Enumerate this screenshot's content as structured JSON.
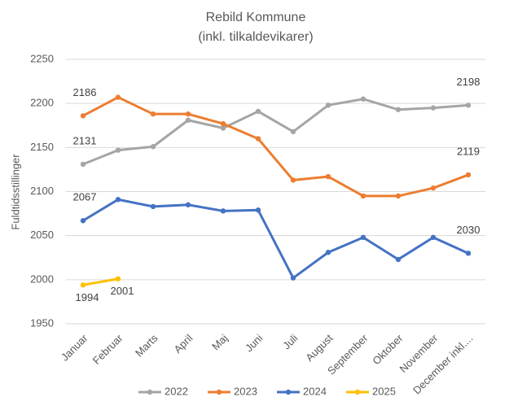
{
  "chart_data": {
    "type": "line",
    "title": "Rebild Kommune",
    "subtitle": "(inkl. tilkaldevikarer)",
    "y_label": "Fuldtidsstillinger",
    "categories": [
      "Januar",
      "Februar",
      "Marts",
      "April",
      "Maj",
      "Juni",
      "Juli",
      "August",
      "September",
      "Oktober",
      "November",
      "December inkl...."
    ],
    "series": [
      {
        "name": "2022",
        "color": "#a5a5a5",
        "values": [
          2131,
          2147,
          2151,
          2181,
          2172,
          2191,
          2168,
          2198,
          2205,
          2193,
          2195,
          2198
        ],
        "labeled_points": [
          0,
          11
        ]
      },
      {
        "name": "2023",
        "color": "#ed7d31",
        "values": [
          2186,
          2207,
          2188,
          2188,
          2177,
          2160,
          2113,
          2117,
          2095,
          2095,
          2104,
          2119
        ],
        "labeled_points": [
          0,
          11
        ]
      },
      {
        "name": "2024",
        "color": "#4472c4",
        "values": [
          2067,
          2091,
          2083,
          2085,
          2078,
          2079,
          2002,
          2031,
          2048,
          2023,
          2048,
          2030
        ],
        "labeled_points": [
          0,
          11
        ]
      },
      {
        "name": "2025",
        "color": "#ffc000",
        "values": [
          1994,
          2001,
          null,
          null,
          null,
          null,
          null,
          null,
          null,
          null,
          null,
          null
        ],
        "labeled_points": [
          0,
          1
        ]
      }
    ],
    "ylim": [
      1950,
      2250
    ],
    "yticks": [
      1950,
      2000,
      2050,
      2100,
      2150,
      2200,
      2250
    ],
    "grid": true,
    "legend": "bottom"
  }
}
